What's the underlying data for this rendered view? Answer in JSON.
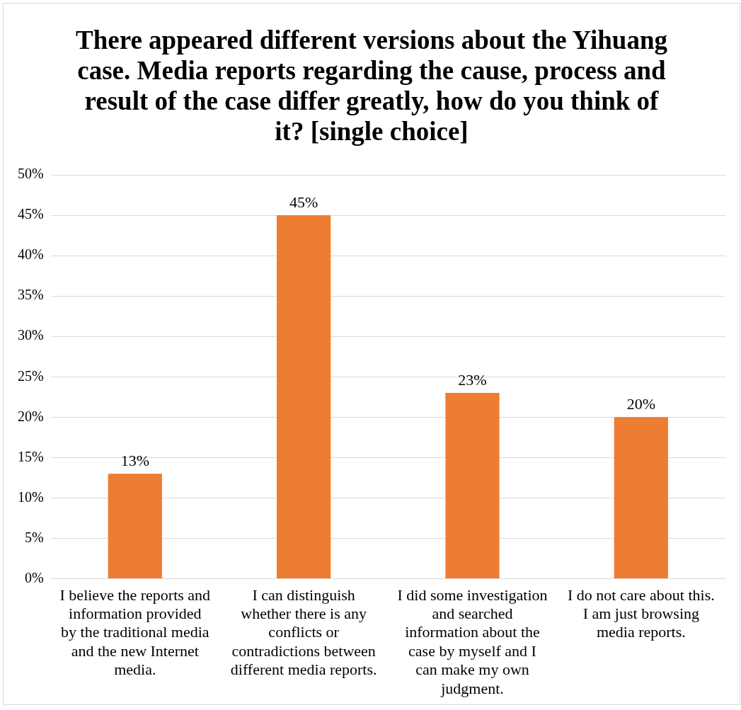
{
  "chart_data": {
    "type": "bar",
    "title": "There appeared different versions about the Yihuang case. Media reports regarding the cause, process and result of the case differ greatly, how do you think of it? [single choice]",
    "categories": [
      "I believe the reports and information provided by the traditional media and the new Internet media.",
      "I can distinguish whether there is any conflicts or contradictions between different media reports.",
      "I did some investigation and searched information about the case by myself and I can make my own judgment.",
      "I do not care about this. I am just browsing media reports."
    ],
    "values": [
      13,
      45,
      23,
      20
    ],
    "value_labels": [
      "13%",
      "45%",
      "23%",
      "20%"
    ],
    "color": "#ed7d31",
    "ylim": [
      0,
      50
    ],
    "yticks": [
      {
        "value": 0,
        "label": "0%"
      },
      {
        "value": 5,
        "label": "5%"
      },
      {
        "value": 10,
        "label": "10%"
      },
      {
        "value": 15,
        "label": "15%"
      },
      {
        "value": 20,
        "label": "20%"
      },
      {
        "value": 25,
        "label": "25%"
      },
      {
        "value": 30,
        "label": "30%"
      },
      {
        "value": 35,
        "label": "35%"
      },
      {
        "value": 40,
        "label": "40%"
      },
      {
        "value": 45,
        "label": "45%"
      },
      {
        "value": 50,
        "label": "50%"
      }
    ],
    "grid": "y",
    "legend": false
  }
}
